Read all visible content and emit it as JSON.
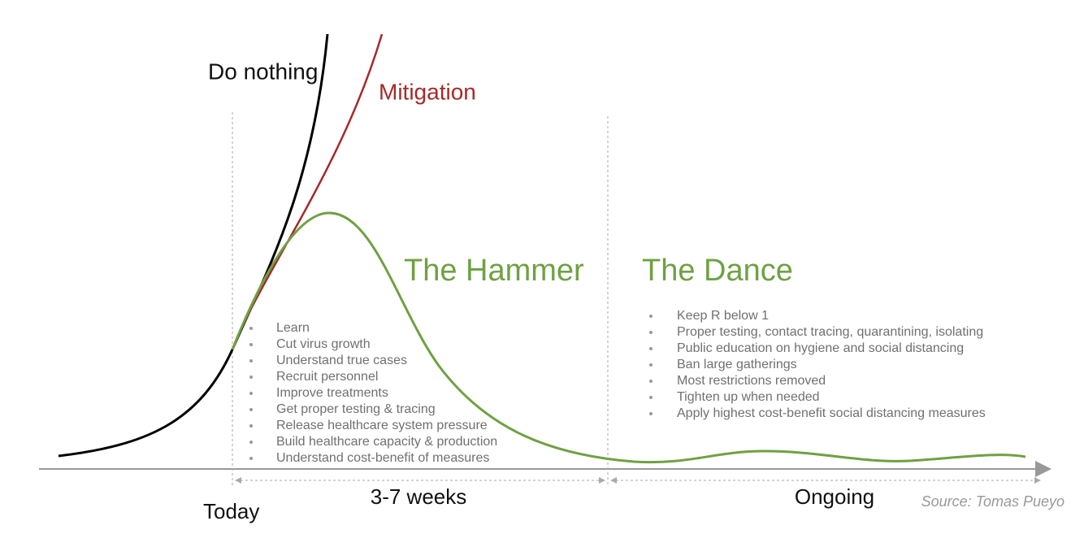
{
  "labels": {
    "do_nothing": "Do nothing",
    "mitigation": "Mitigation",
    "hammer": "The Hammer",
    "dance": "The Dance",
    "today": "Today",
    "hammer_duration": "3-7 weeks",
    "dance_duration": "Ongoing",
    "source": "Source: Tomas Pueyo"
  },
  "hammer_items": [
    "Learn",
    "Cut virus growth",
    "Understand true cases",
    "Recruit personnel",
    "Improve treatments",
    "Get proper testing & tracing",
    "Release healthcare system pressure",
    "Build healthcare capacity & production",
    "Understand cost-benefit of measures"
  ],
  "dance_items": [
    "Keep R below 1",
    "Proper testing, contact tracing, quarantining, isolating",
    "Public education on hygiene and social distancing",
    "Ban large gatherings",
    "Most restrictions removed",
    "Tighten up when needed",
    "Apply highest cost-benefit social distancing measures"
  ]
}
